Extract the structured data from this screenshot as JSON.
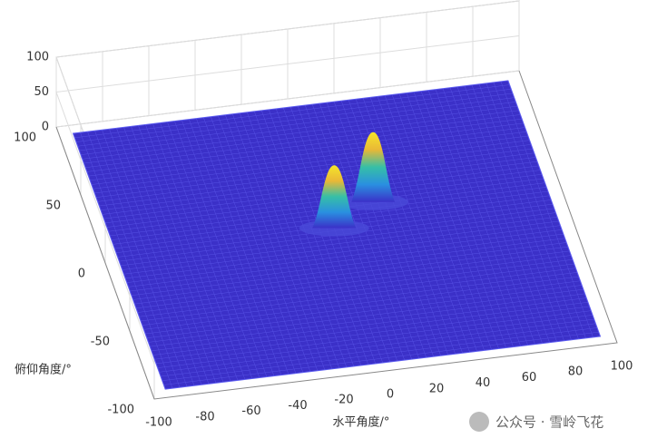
{
  "chart_data": {
    "type": "surface",
    "xlabel": "水平角度/°",
    "ylabel": "俯仰角度/°",
    "xlim": [
      -100,
      100
    ],
    "ylim": [
      -100,
      100
    ],
    "zlim": [
      0,
      100
    ],
    "xticks": [
      -100,
      -80,
      -60,
      -40,
      -20,
      0,
      20,
      40,
      60,
      80,
      100
    ],
    "yticks": [
      -100,
      -50,
      0,
      50,
      100
    ],
    "zticks": [
      0,
      50,
      100
    ],
    "grid": true,
    "color": "#3b30c8",
    "peaks": [
      {
        "x": 20,
        "y": 20,
        "z": 100
      },
      {
        "x": 0,
        "y": 5,
        "z": 90
      }
    ]
  },
  "watermark": "公众号 · 雪岭飞花"
}
